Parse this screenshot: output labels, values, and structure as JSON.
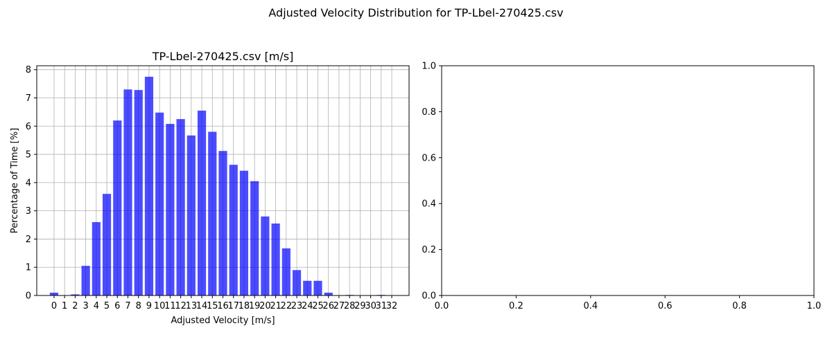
{
  "figure": {
    "suptitle": "Adjusted Velocity Distribution for TP-Lbel-270425.csv"
  },
  "chart_data": [
    {
      "type": "bar",
      "title": "TP-Lbel-270425.csv [m/s]",
      "xlabel": "Adjusted Velocity [m/s]",
      "ylabel": "Percentage of Time [%]",
      "categories": [
        "0",
        "1",
        "2",
        "3",
        "4",
        "5",
        "6",
        "7",
        "8",
        "9",
        "10",
        "11",
        "12",
        "13",
        "14",
        "15",
        "16",
        "17",
        "18",
        "19",
        "20",
        "21",
        "22",
        "23",
        "24",
        "25",
        "26",
        "27",
        "28",
        "29",
        "30",
        "31",
        "32"
      ],
      "values": [
        0.1,
        0.0,
        0.04,
        1.05,
        2.6,
        3.6,
        6.2,
        7.3,
        7.28,
        7.75,
        6.48,
        6.08,
        6.25,
        5.67,
        6.55,
        5.8,
        5.12,
        4.63,
        4.42,
        4.05,
        2.8,
        2.55,
        1.67,
        0.9,
        0.52,
        0.52,
        0.1,
        0.0,
        0.02,
        0.0,
        0.0,
        0.02,
        0.0
      ],
      "yticks": [
        "0",
        "1",
        "2",
        "3",
        "4",
        "5",
        "6",
        "7",
        "8"
      ],
      "ylim": [
        0,
        8.14
      ],
      "xlim": [
        -1.64,
        33.64
      ],
      "bar_color": "#0000ff",
      "bar_opacity": 0.7,
      "grid": true
    },
    {
      "type": "empty",
      "title": "",
      "xticks": [
        "0.0",
        "0.2",
        "0.4",
        "0.6",
        "0.8",
        "1.0"
      ],
      "yticks": [
        "0.0",
        "0.2",
        "0.4",
        "0.6",
        "0.8",
        "1.0"
      ],
      "xlim": [
        0,
        1
      ],
      "ylim": [
        0,
        1
      ],
      "grid": false
    }
  ]
}
